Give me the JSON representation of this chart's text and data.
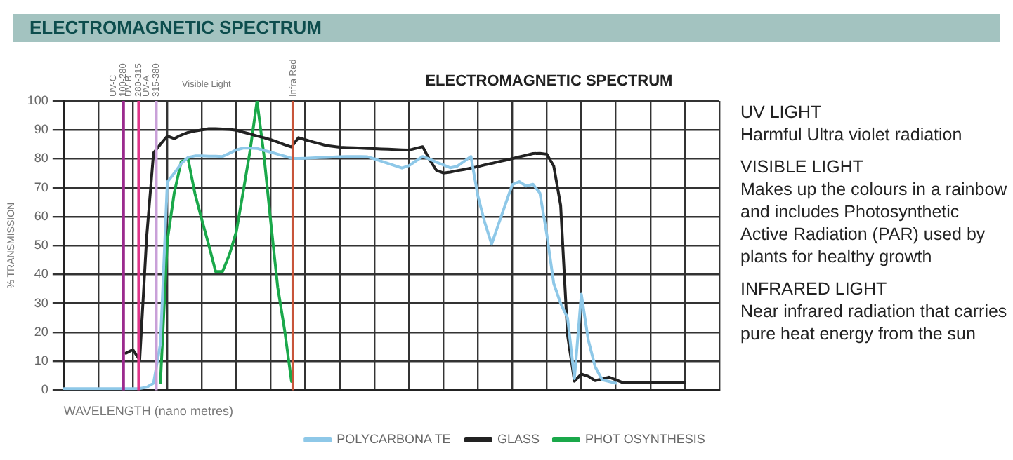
{
  "chart_data": {
    "type": "line",
    "title": "ELECTROMAGNETIC SPECTRUM",
    "subtitle": "ELECTROMAGNETIC SPECTRUM",
    "xlabel": "WAVELENGTH (nano metres)",
    "ylabel": "% TRANSMISSION",
    "annotations": [
      "UV-C 100-280",
      "UV-B 280-315",
      "UV-A 315-380",
      "Infra Red",
      "Visible Light",
      "UV LIGHT",
      "Harmful Ultra violet radiation",
      "VISIBLE LIGHT",
      "Makes up the colours in a rainbow and includes Photosynthetic Active Radiation (PAR) used by plants for healthy growth",
      "INFRARED LIGHT",
      "Near infrared radiation that carries pure heat energy from the sun"
    ],
    "categories": [
      null,
      null,
      null,
      null,
      null,
      null,
      null,
      null,
      null,
      null,
      null,
      null,
      null,
      null,
      null,
      null,
      null,
      null,
      null,
      null,
      null,
      null,
      null,
      null,
      null,
      null,
      null,
      null,
      null,
      null,
      null,
      null,
      null,
      null,
      null,
      null,
      null,
      null,
      null,
      null,
      null,
      null,
      null,
      null,
      null,
      null,
      null,
      null,
      null,
      null,
      null,
      null,
      null,
      null,
      null,
      null,
      null,
      null,
      null,
      null,
      null,
      null,
      null,
      null,
      null,
      null,
      null,
      null,
      null,
      null,
      null,
      null,
      null,
      null,
      null,
      null,
      null,
      null,
      null,
      null,
      null,
      null,
      null,
      null,
      null,
      null,
      null,
      null,
      null,
      null,
      null,
      null,
      null,
      null,
      null,
      null
    ],
    "series": [
      {
        "name": "POLYCARBONA TE",
        "color": "#8ec8e8",
        "values": [
          0.5,
          0.5,
          0.5,
          0.5,
          0.5,
          0.5,
          0.5,
          0.5,
          0.5,
          0.5,
          0.5,
          0.6,
          1.0,
          2.4,
          16,
          72,
          75,
          78.3,
          80.5,
          81,
          81,
          80.9,
          80.9,
          80.8,
          81.9,
          83.1,
          83.7,
          83.7,
          83.6,
          82.9,
          82.3,
          81.6,
          80.9,
          80.2,
          80.1,
          80.2,
          80.3,
          80.4,
          80.5,
          80.6,
          80.7,
          80.8,
          80.8,
          80.8,
          80.7,
          80,
          79.2,
          78.4,
          77.6,
          76.8,
          77.6,
          79.2,
          80.8,
          79.9,
          78.8,
          77.9,
          76.9,
          77.4,
          79.1,
          80.8,
          67.2,
          58,
          50.5,
          57.4,
          64.3,
          71.1,
          72.1,
          70.6,
          71.2,
          68.1,
          53.8,
          36.9,
          30,
          25,
          4,
          33.2,
          17.4,
          8.1,
          3.6,
          3.0,
          2.4,
          null,
          null,
          null,
          null,
          null,
          null,
          null,
          null,
          null,
          null,
          null,
          null,
          null,
          null,
          null
        ]
      },
      {
        "name": "GLASS",
        "color": "#222222",
        "values": [
          null,
          null,
          null,
          null,
          null,
          null,
          null,
          null,
          null,
          12.8,
          14.0,
          10.5,
          52.8,
          82,
          85,
          87.9,
          87,
          88.2,
          89.1,
          89.6,
          90,
          90.4,
          90.4,
          90.3,
          90.2,
          89.9,
          89.2,
          88.6,
          87.9,
          87.3,
          86.6,
          85.8,
          84.9,
          84.1,
          87.3,
          86.6,
          85.9,
          85.3,
          84.6,
          84.3,
          84,
          83.9,
          83.8,
          83.7,
          83.6,
          83.5,
          83.4,
          83.3,
          83.2,
          83.1,
          83,
          83.6,
          84.2,
          79.7,
          76,
          75.1,
          75.4,
          75.9,
          76.3,
          76.8,
          77.3,
          77.9,
          78.4,
          79,
          79.5,
          80.1,
          80.7,
          81.2,
          81.8,
          81.9,
          81.6,
          77.5,
          63.9,
          19,
          3.1,
          5.6,
          4.8,
          3.3,
          3.9,
          4.5,
          3.6,
          2.6,
          2.6,
          2.6,
          2.6,
          2.6,
          2.6,
          2.7,
          2.7,
          2.7,
          2.7,
          null,
          null,
          null,
          null,
          null
        ]
      },
      {
        "name": "PHOT OSYNTHESIS",
        "color": "#1aa84a",
        "values": [
          null,
          null,
          null,
          null,
          null,
          null,
          null,
          null,
          null,
          null,
          null,
          null,
          null,
          null,
          2.5,
          51.7,
          68.2,
          79,
          80,
          68,
          58.9,
          50.3,
          41,
          41,
          46.9,
          54.8,
          68.7,
          82.9,
          100,
          81.3,
          57.9,
          35.6,
          20.7,
          3,
          null,
          null,
          null,
          null,
          null,
          null,
          null,
          null,
          null,
          null,
          null,
          null,
          null,
          null,
          null,
          null,
          null,
          null,
          null,
          null,
          null,
          null,
          null,
          null,
          null,
          null,
          null,
          null,
          null,
          null,
          null,
          null,
          null,
          null,
          null,
          null,
          null,
          null,
          null,
          null,
          null,
          null,
          null,
          null,
          null,
          null,
          null,
          null,
          null,
          null,
          null,
          null,
          null,
          null,
          null,
          null,
          null,
          null,
          null,
          null,
          null,
          null
        ]
      }
    ],
    "ylim": [
      0,
      100
    ],
    "yticks": [
      0,
      10,
      20,
      30,
      40,
      50,
      60,
      70,
      80,
      90,
      100
    ],
    "grid": true,
    "legend": "bottom",
    "tick_labels": "y",
    "marker": "none",
    "line_style": "solid"
  }
}
